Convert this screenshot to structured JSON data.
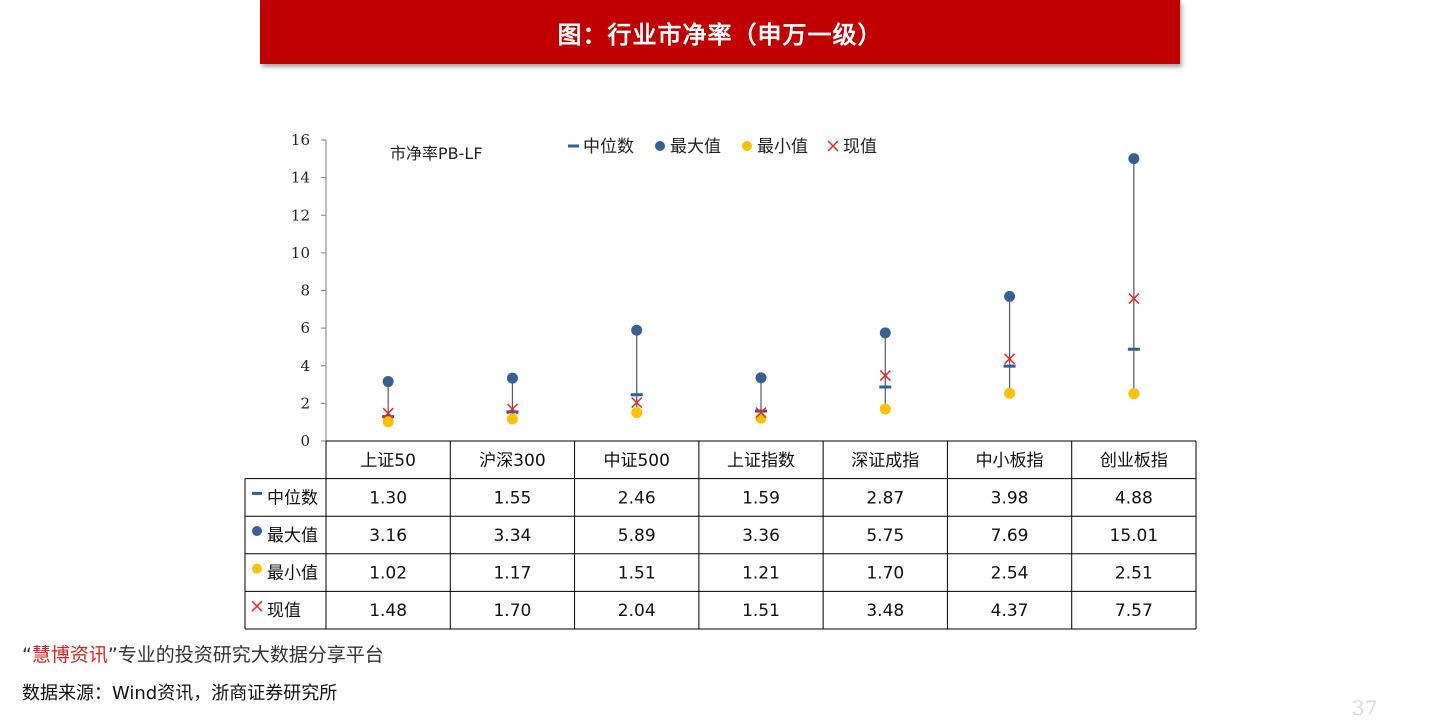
{
  "header": {
    "title": "图：行业市净率（申万一级）"
  },
  "chart_data": {
    "type": "scatter",
    "subtitle": "市净率PB-LF",
    "ylim": [
      0,
      16
    ],
    "yticks": [
      0,
      2,
      4,
      6,
      8,
      10,
      12,
      14,
      16
    ],
    "categories": [
      "上证50",
      "沪深300",
      "中证500",
      "上证指数",
      "深证成指",
      "中小板指",
      "创业板指"
    ],
    "series": [
      {
        "name": "中位数",
        "marker": "dash",
        "color": "#2e5e9e",
        "values": [
          1.3,
          1.55,
          2.46,
          1.59,
          2.87,
          3.98,
          4.88
        ],
        "labels": [
          "1.30",
          "1.55",
          "2.46",
          "1.59",
          "2.87",
          "3.98",
          "4.88"
        ]
      },
      {
        "name": "最大值",
        "marker": "circle",
        "color": "#3a5f94",
        "values": [
          3.16,
          3.34,
          5.89,
          3.36,
          5.75,
          7.69,
          15.01
        ],
        "labels": [
          "3.16",
          "3.34",
          "5.89",
          "3.36",
          "5.75",
          "7.69",
          "15.01"
        ]
      },
      {
        "name": "最小值",
        "marker": "circle",
        "color": "#ffc000",
        "values": [
          1.02,
          1.17,
          1.51,
          1.21,
          1.7,
          2.54,
          2.51
        ],
        "labels": [
          "1.02",
          "1.17",
          "1.51",
          "1.21",
          "1.70",
          "2.54",
          "2.51"
        ]
      },
      {
        "name": "现值",
        "marker": "x",
        "color": "#e8262a",
        "values": [
          1.48,
          1.7,
          2.04,
          1.51,
          3.48,
          4.37,
          7.57
        ],
        "labels": [
          "1.48",
          "1.70",
          "2.04",
          "1.51",
          "3.48",
          "4.37",
          "7.57"
        ]
      }
    ],
    "range_line_color": "#595959",
    "legend_position": "top",
    "grid": false,
    "has_data_table": true
  },
  "footer": {
    "slogan_brand": "慧博资讯",
    "slogan_text": "专业的投资研究大数据分享平台",
    "source": "数据来源：Wind资讯，浙商证券研究所"
  },
  "page_number": "37"
}
